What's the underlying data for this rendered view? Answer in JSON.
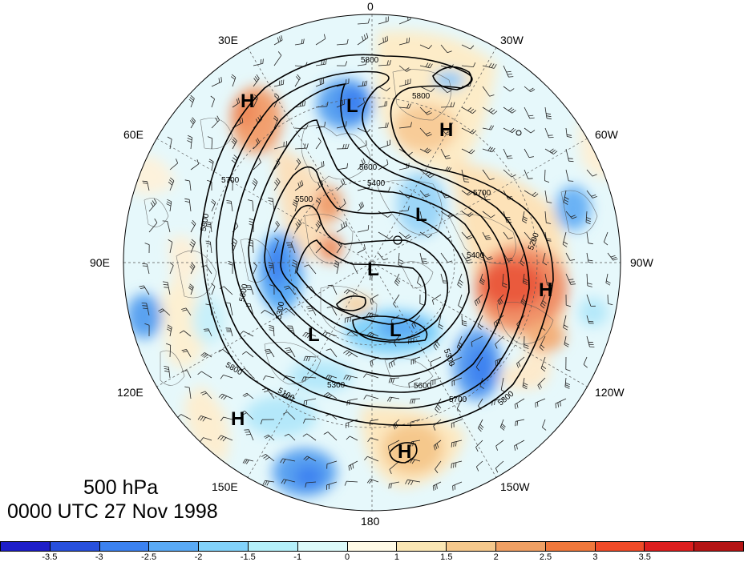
{
  "title": {
    "level": "500 hPa",
    "time": "0000 UTC 27 Nov 1998"
  },
  "longitude_labels": [
    {
      "name": "lon-0",
      "text": "0"
    },
    {
      "name": "lon-30w",
      "text": "30W"
    },
    {
      "name": "lon-60w",
      "text": "60W"
    },
    {
      "name": "lon-90w",
      "text": "90W"
    },
    {
      "name": "lon-120w",
      "text": "120W"
    },
    {
      "name": "lon-150w",
      "text": "150W"
    },
    {
      "name": "lon-180",
      "text": "180"
    },
    {
      "name": "lon-150e",
      "text": "150E"
    },
    {
      "name": "lon-120e",
      "text": "120E"
    },
    {
      "name": "lon-90e",
      "text": "90E"
    },
    {
      "name": "lon-60e",
      "text": "60E"
    },
    {
      "name": "lon-30e",
      "text": "30E"
    }
  ],
  "pressure_centers": [
    {
      "type": "H",
      "text": "H"
    },
    {
      "type": "L",
      "text": "L"
    },
    {
      "type": "H",
      "text": "H"
    },
    {
      "type": "L",
      "text": "L"
    },
    {
      "type": "L",
      "text": "L"
    },
    {
      "type": "H",
      "text": "H"
    },
    {
      "type": "L",
      "text": "L"
    },
    {
      "type": "L",
      "text": "L"
    },
    {
      "type": "H",
      "text": "H"
    },
    {
      "type": "H",
      "text": "H"
    }
  ],
  "contour_labels": [
    "5800",
    "5800",
    "5700",
    "5800",
    "5500",
    "5400",
    "5600",
    "5300",
    "5200",
    "5800",
    "5100",
    "5300",
    "5600",
    "5700",
    "5800",
    "5300",
    "5400",
    "5600",
    "5700"
  ],
  "colorbar": {
    "colors": [
      "#1e1ec8",
      "#2850dc",
      "#3c82f0",
      "#5aaaf5",
      "#82d2fa",
      "#b4f0fa",
      "#dcfafa",
      "#fffae6",
      "#fae6b4",
      "#f5c88c",
      "#f0a064",
      "#f0783c",
      "#f04b28",
      "#dc1e1e",
      "#b41414"
    ],
    "ticks": [
      "-3.5",
      "-3",
      "-2.5",
      "-2",
      "-1.5",
      "-1",
      "0",
      "1",
      "1.5",
      "2",
      "2.5",
      "3",
      "3.5"
    ]
  }
}
